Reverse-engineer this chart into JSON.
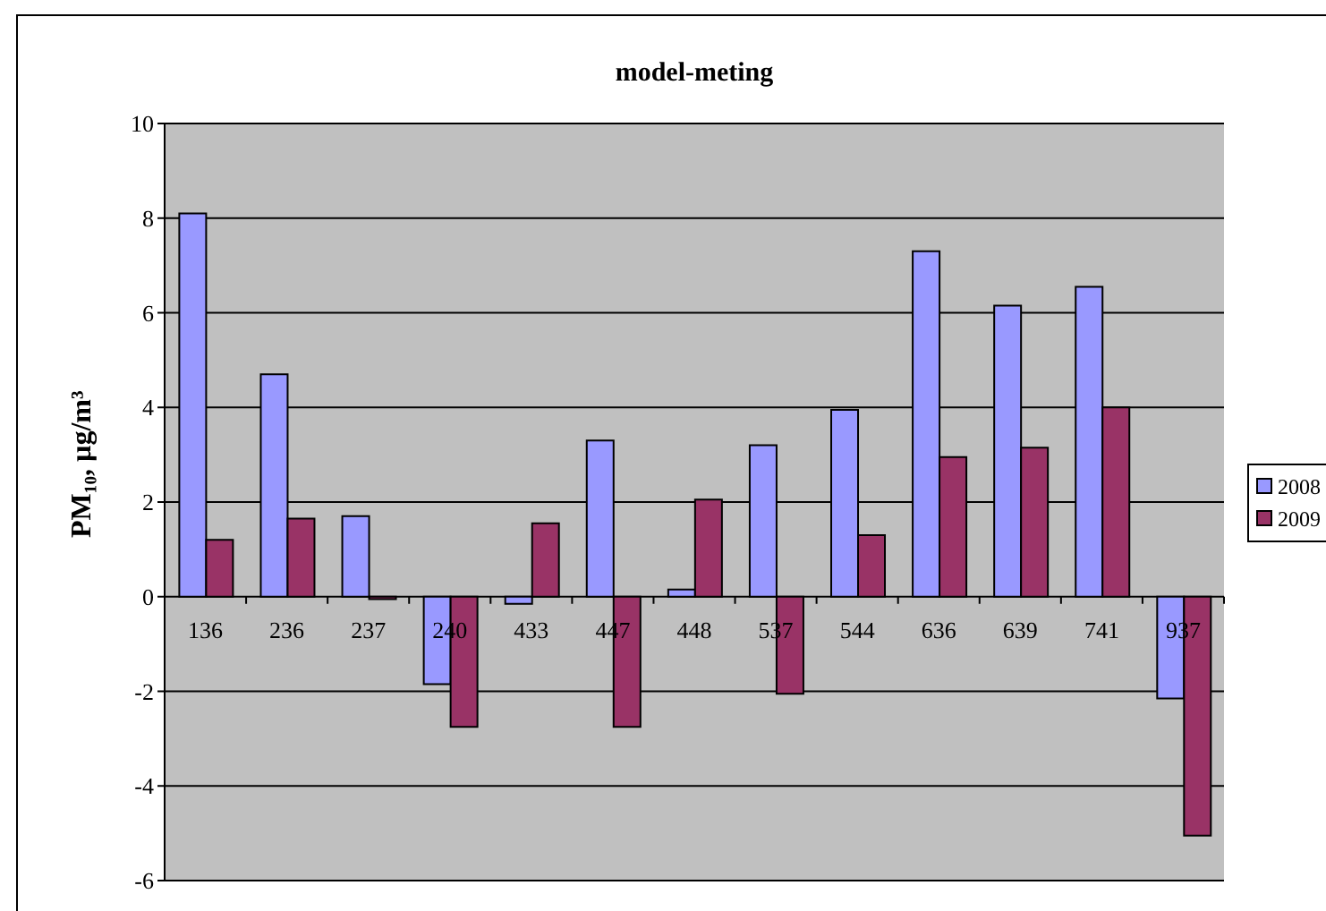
{
  "chart_data": {
    "type": "bar",
    "title": "model-meting",
    "ylabel": "PM₁₀, µg/m³",
    "categories": [
      "136",
      "236",
      "237",
      "240",
      "433",
      "447",
      "448",
      "537",
      "544",
      "636",
      "639",
      "741",
      "937"
    ],
    "series": [
      {
        "name": "2008",
        "color": "#9999ff",
        "values": [
          8.1,
          4.7,
          1.7,
          -1.85,
          -0.15,
          3.3,
          0.15,
          3.2,
          3.95,
          7.3,
          6.15,
          6.55,
          -2.15
        ]
      },
      {
        "name": "2009",
        "color": "#993366",
        "values": [
          1.2,
          1.65,
          -0.05,
          -2.75,
          1.55,
          -2.75,
          2.05,
          -2.05,
          1.3,
          2.95,
          3.15,
          4.0,
          -5.05
        ]
      }
    ],
    "ylim": [
      -6,
      10
    ],
    "yticks": [
      -6,
      -4,
      -2,
      0,
      2,
      4,
      6,
      8,
      10
    ],
    "grid": "y",
    "legend": "right"
  }
}
